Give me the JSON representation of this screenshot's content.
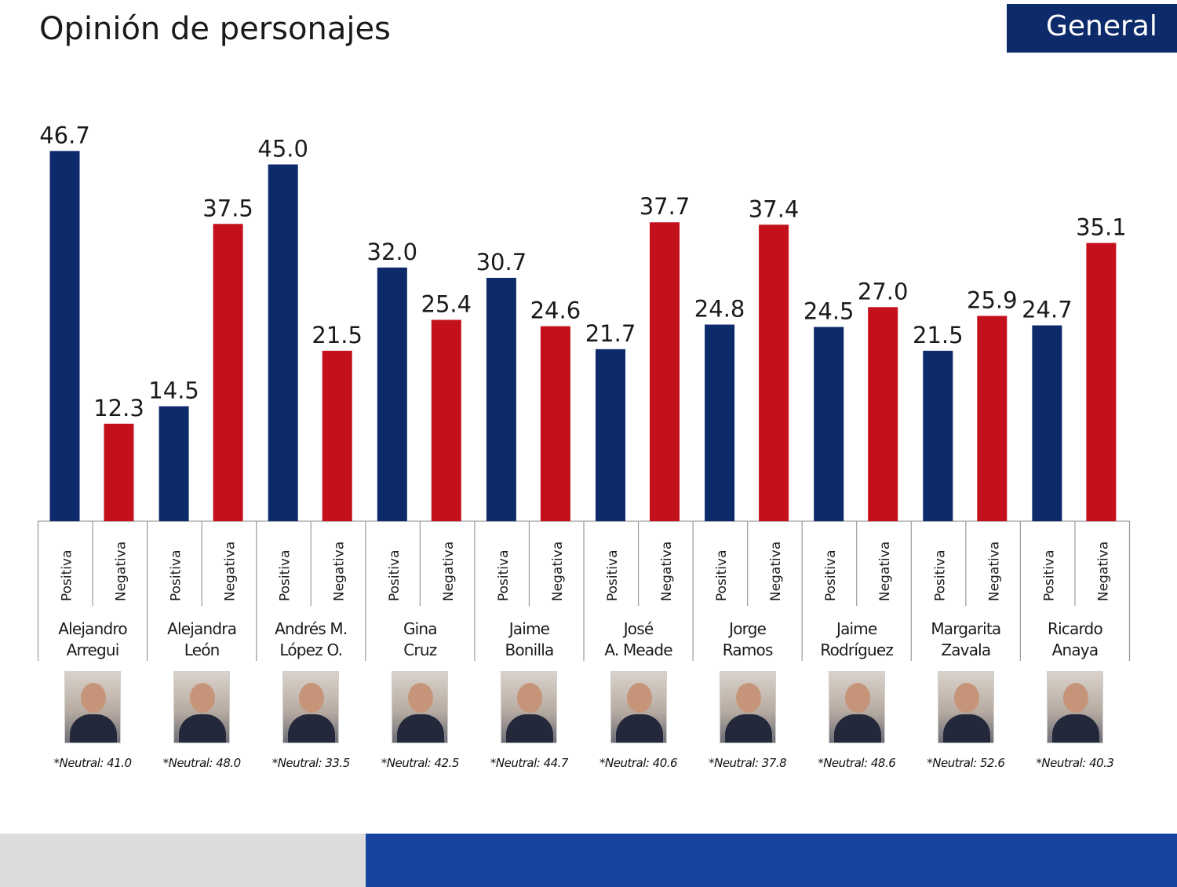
{
  "header": {
    "title": "Opinión de personajes",
    "badge": "General"
  },
  "colors": {
    "positive": "#0d2a6b",
    "negative": "#c4101a",
    "footer_blue": "#1844a0"
  },
  "chart_data": {
    "type": "bar",
    "categories": [
      "Alejandro Arregui",
      "Alejandra León",
      "Andrés M. López O.",
      "Gina Cruz",
      "Jaime Bonilla",
      "José A. Meade",
      "Jorge Ramos",
      "Jaime Rodríguez",
      "Margarita Zavala",
      "Ricardo Anaya"
    ],
    "category_lines": [
      [
        "Alejandro",
        "Arregui"
      ],
      [
        "Alejandra",
        "León"
      ],
      [
        "Andrés M.",
        "López O."
      ],
      [
        "Gina",
        "Cruz"
      ],
      [
        "Jaime",
        "Bonilla"
      ],
      [
        "José",
        "A. Meade"
      ],
      [
        "Jorge",
        "Ramos"
      ],
      [
        "Jaime",
        "Rodríguez"
      ],
      [
        "Margarita",
        "Zavala"
      ],
      [
        "Ricardo",
        "Anaya"
      ]
    ],
    "series": [
      {
        "name": "Positiva",
        "values": [
          46.7,
          14.5,
          45.0,
          32.0,
          30.7,
          21.7,
          24.8,
          24.5,
          21.5,
          24.7
        ]
      },
      {
        "name": "Negativa",
        "values": [
          12.3,
          37.5,
          21.5,
          25.4,
          24.6,
          37.7,
          37.4,
          27.0,
          25.9,
          35.1
        ]
      }
    ],
    "neutral": [
      "*Neutral: 41.0",
      "*Neutral: 48.0",
      "*Neutral: 33.5",
      "*Neutral: 42.5",
      "*Neutral: 44.7",
      "*Neutral: 40.6",
      "*Neutral: 37.8",
      "*Neutral: 48.6",
      "*Neutral: 52.6",
      "*Neutral: 40.3"
    ],
    "ylim": [
      0,
      50
    ],
    "grid": false,
    "data_labels": true
  }
}
